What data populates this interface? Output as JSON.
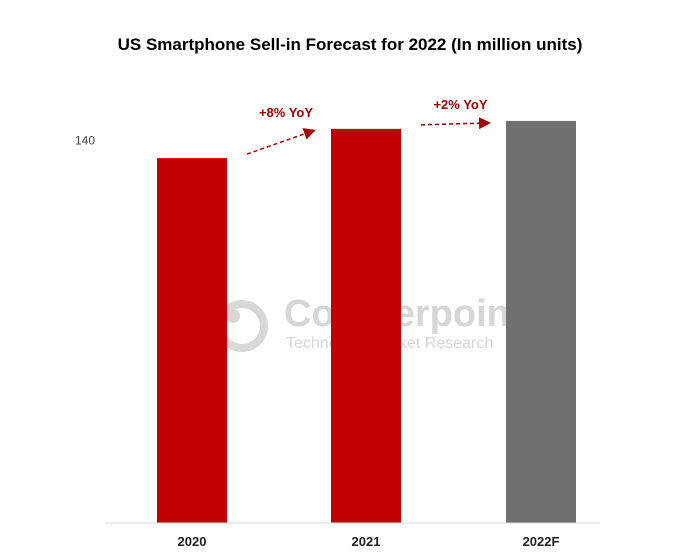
{
  "chart_data": {
    "type": "bar",
    "title": "US Smartphone Sell-in Forecast for 2022 (In million units)",
    "categories": [
      "2020",
      "2021",
      "2022F"
    ],
    "values": [
      133.5,
      144.2,
      147.1
    ],
    "bar_colors": [
      "#c00000",
      "#c00000",
      "#707070"
    ],
    "ylim": [
      0,
      165
    ],
    "yticks": [
      140
    ],
    "grid": false,
    "annotations": [
      {
        "text": "+8% YoY",
        "from": "2020",
        "to": "2021",
        "color": "#a30000"
      },
      {
        "text": "+2% YoY",
        "from": "2021",
        "to": "2022F",
        "color": "#a30000"
      }
    ]
  },
  "watermark": {
    "brand": "Counterpoint",
    "tagline": "Technology Market Research"
  }
}
